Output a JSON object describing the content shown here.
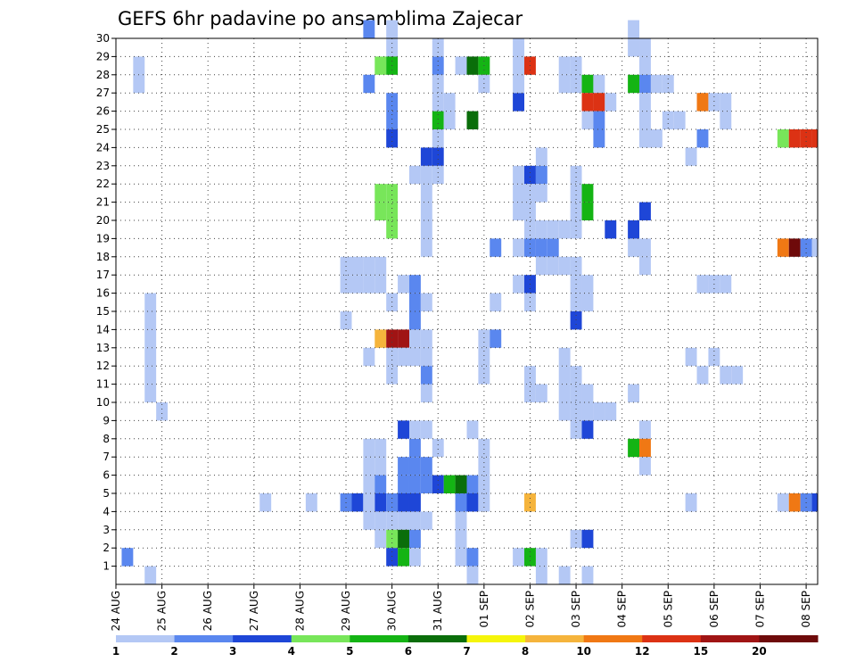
{
  "chart_data": {
    "type": "heatmap",
    "title": "GEFS 6hr padavine po ansamblima Zajecar",
    "x_tick_labels": [
      "24 AUG",
      "25 AUG",
      "26 AUG",
      "27 AUG",
      "28 AUG",
      "29 AUG",
      "30 AUG",
      "31 AUG",
      "01 SEP",
      "02 SEP",
      "03 SEP",
      "04 SEP",
      "05 SEP",
      "06 SEP",
      "07 SEP",
      "08 SEP"
    ],
    "y_tick_labels": [
      "1",
      "2",
      "3",
      "4",
      "5",
      "6",
      "7",
      "8",
      "9",
      "10",
      "11",
      "12",
      "13",
      "14",
      "15",
      "16",
      "17",
      "18",
      "19",
      "20",
      "21",
      "22",
      "23",
      "24",
      "25",
      "26",
      "27",
      "28",
      "29",
      "30"
    ],
    "x_steps": 61,
    "steps_per_day": 4,
    "y_range": [
      0,
      30
    ],
    "grid": true,
    "legend": {
      "placement": "bottom",
      "labels": [
        "1",
        "2",
        "3",
        "4",
        "5",
        "6",
        "7",
        "8",
        "10",
        "12",
        "15",
        "20"
      ],
      "colors": [
        "#b4c8f5",
        "#5a87ef",
        "#1e46d7",
        "#78e65a",
        "#14b414",
        "#0a6e0a",
        "#f5f50a",
        "#f5b43c",
        "#f07814",
        "#dc3214",
        "#a01414",
        "#6e0a0a"
      ]
    },
    "cells": [
      [
        1,
        1,
        2
      ],
      [
        2,
        27,
        1
      ],
      [
        2,
        28,
        1
      ],
      [
        3,
        15,
        1
      ],
      [
        3,
        10,
        1
      ],
      [
        3,
        0,
        1
      ],
      [
        3,
        11,
        1
      ],
      [
        3,
        12,
        1
      ],
      [
        3,
        13,
        1
      ],
      [
        3,
        14,
        1
      ],
      [
        4,
        9,
        1
      ],
      [
        13,
        4,
        1
      ],
      [
        17,
        4,
        1
      ],
      [
        24,
        15,
        1
      ],
      [
        20,
        4,
        2
      ],
      [
        21,
        4,
        3
      ],
      [
        22,
        4,
        1
      ],
      [
        20,
        17,
        1
      ],
      [
        21,
        17,
        1
      ],
      [
        22,
        17,
        1
      ],
      [
        23,
        17,
        1
      ],
      [
        20,
        16,
        1
      ],
      [
        21,
        16,
        1
      ],
      [
        22,
        16,
        1
      ],
      [
        23,
        16,
        1
      ],
      [
        20,
        14,
        1
      ],
      [
        23,
        4,
        3
      ],
      [
        24,
        4,
        2
      ],
      [
        24,
        30,
        1
      ],
      [
        24,
        29,
        1
      ],
      [
        22,
        30,
        2
      ],
      [
        23,
        28,
        4
      ],
      [
        24,
        28,
        5
      ],
      [
        22,
        27,
        2
      ],
      [
        24,
        26,
        2
      ],
      [
        24,
        25,
        2
      ],
      [
        24,
        24,
        3
      ],
      [
        23,
        21,
        4
      ],
      [
        24,
        21,
        4
      ],
      [
        23,
        20,
        4
      ],
      [
        24,
        20,
        4
      ],
      [
        24,
        19,
        4
      ],
      [
        23,
        13,
        8
      ],
      [
        24,
        13,
        11
      ],
      [
        25,
        13,
        11
      ],
      [
        24,
        12,
        1
      ],
      [
        25,
        12,
        1
      ],
      [
        22,
        12,
        1
      ],
      [
        24,
        11,
        1
      ],
      [
        22,
        3,
        1
      ],
      [
        22,
        4,
        1
      ],
      [
        22,
        5,
        1
      ],
      [
        22,
        6,
        1
      ],
      [
        22,
        7,
        1
      ],
      [
        23,
        7,
        1
      ],
      [
        23,
        6,
        1
      ],
      [
        23,
        5,
        2
      ],
      [
        23,
        3,
        1
      ],
      [
        23,
        2,
        1
      ],
      [
        24,
        3,
        1
      ],
      [
        24,
        2,
        4
      ],
      [
        24,
        1,
        3
      ],
      [
        25,
        3,
        1
      ],
      [
        25,
        2,
        6
      ],
      [
        25,
        1,
        5
      ],
      [
        26,
        3,
        1
      ],
      [
        26,
        2,
        2
      ],
      [
        27,
        3,
        1
      ],
      [
        26,
        1,
        1
      ],
      [
        25,
        4,
        3
      ],
      [
        26,
        4,
        3
      ],
      [
        25,
        5,
        2
      ],
      [
        26,
        5,
        2
      ],
      [
        27,
        5,
        2
      ],
      [
        28,
        5,
        3
      ],
      [
        25,
        6,
        2
      ],
      [
        26,
        6,
        2
      ],
      [
        27,
        6,
        2
      ],
      [
        26,
        7,
        2
      ],
      [
        25,
        8,
        3
      ],
      [
        26,
        8,
        1
      ],
      [
        27,
        8,
        1
      ],
      [
        28,
        7,
        1
      ],
      [
        26,
        13,
        1
      ],
      [
        27,
        13,
        1
      ],
      [
        26,
        12,
        1
      ],
      [
        27,
        12,
        1
      ],
      [
        25,
        16,
        1
      ],
      [
        26,
        16,
        2
      ],
      [
        26,
        15,
        2
      ],
      [
        27,
        15,
        1
      ],
      [
        26,
        14,
        2
      ],
      [
        27,
        18,
        1
      ],
      [
        27,
        19,
        1
      ],
      [
        27,
        20,
        1
      ],
      [
        27,
        21,
        1
      ],
      [
        27,
        22,
        1
      ],
      [
        26,
        22,
        1
      ],
      [
        28,
        22,
        1
      ],
      [
        27,
        23,
        3
      ],
      [
        28,
        23,
        3
      ],
      [
        28,
        24,
        1
      ],
      [
        28,
        25,
        5
      ],
      [
        29,
        25,
        1
      ],
      [
        28,
        26,
        1
      ],
      [
        29,
        26,
        1
      ],
      [
        28,
        27,
        1
      ],
      [
        28,
        28,
        2
      ],
      [
        28,
        29,
        1
      ],
      [
        27,
        10,
        1
      ],
      [
        27,
        11,
        2
      ],
      [
        29,
        5,
        5
      ],
      [
        30,
        5,
        6
      ],
      [
        30,
        3,
        1
      ],
      [
        30,
        2,
        1
      ],
      [
        30,
        1,
        1
      ],
      [
        31,
        1,
        2
      ],
      [
        31,
        0,
        1
      ],
      [
        31,
        4,
        3
      ],
      [
        30,
        4,
        2
      ],
      [
        31,
        5,
        2
      ],
      [
        31,
        8,
        1
      ],
      [
        32,
        12,
        1
      ],
      [
        32,
        11,
        1
      ],
      [
        32,
        7,
        1
      ],
      [
        32,
        6,
        1
      ],
      [
        32,
        5,
        1
      ],
      [
        32,
        4,
        1
      ],
      [
        32,
        13,
        1
      ],
      [
        33,
        13,
        2
      ],
      [
        31,
        25,
        6
      ],
      [
        33,
        15,
        1
      ],
      [
        33,
        18,
        2
      ],
      [
        32,
        27,
        1
      ],
      [
        30,
        28,
        1
      ],
      [
        31,
        28,
        6
      ],
      [
        32,
        28,
        5
      ],
      [
        36,
        28,
        10
      ],
      [
        35,
        26,
        3
      ],
      [
        35,
        16,
        1
      ],
      [
        36,
        16,
        3
      ],
      [
        36,
        15,
        1
      ],
      [
        35,
        27,
        1
      ],
      [
        35,
        28,
        1
      ],
      [
        35,
        29,
        1
      ],
      [
        35,
        21,
        1
      ],
      [
        35,
        20,
        1
      ],
      [
        36,
        21,
        1
      ],
      [
        36,
        20,
        1
      ],
      [
        36,
        19,
        1
      ],
      [
        36,
        18,
        2
      ],
      [
        37,
        18,
        2
      ],
      [
        38,
        18,
        2
      ],
      [
        37,
        19,
        1
      ],
      [
        38,
        19,
        1
      ],
      [
        39,
        19,
        1
      ],
      [
        37,
        17,
        1
      ],
      [
        38,
        17,
        1
      ],
      [
        39,
        17,
        1
      ],
      [
        40,
        17,
        1
      ],
      [
        40,
        19,
        1
      ],
      [
        35,
        18,
        1
      ],
      [
        35,
        22,
        1
      ],
      [
        36,
        22,
        3
      ],
      [
        36,
        21,
        1
      ],
      [
        37,
        22,
        2
      ],
      [
        37,
        21,
        1
      ],
      [
        37,
        23,
        1
      ],
      [
        39,
        12,
        1
      ],
      [
        37,
        1,
        1
      ],
      [
        36,
        1,
        5
      ],
      [
        35,
        1,
        1
      ],
      [
        37,
        0,
        1
      ],
      [
        40,
        15,
        1
      ],
      [
        40,
        16,
        1
      ],
      [
        41,
        15,
        1
      ],
      [
        41,
        16,
        1
      ],
      [
        40,
        20,
        1
      ],
      [
        40,
        21,
        1
      ],
      [
        40,
        22,
        1
      ],
      [
        41,
        20,
        5
      ],
      [
        41,
        21,
        5
      ],
      [
        40,
        14,
        3
      ],
      [
        36,
        4,
        8
      ],
      [
        36,
        11,
        1
      ],
      [
        36,
        10,
        1
      ],
      [
        37,
        10,
        1
      ],
      [
        39,
        27,
        1
      ],
      [
        39,
        28,
        1
      ],
      [
        40,
        27,
        1
      ],
      [
        40,
        28,
        1
      ],
      [
        41,
        27,
        5
      ],
      [
        42,
        27,
        1
      ],
      [
        41,
        26,
        10
      ],
      [
        42,
        26,
        10
      ],
      [
        41,
        25,
        1
      ],
      [
        42,
        25,
        2
      ],
      [
        42,
        24,
        2
      ],
      [
        43,
        26,
        1
      ],
      [
        40,
        8,
        1
      ],
      [
        41,
        8,
        3
      ],
      [
        40,
        2,
        1
      ],
      [
        41,
        2,
        3
      ],
      [
        43,
        19,
        3
      ],
      [
        42,
        9,
        1
      ],
      [
        43,
        9,
        1
      ],
      [
        46,
        8,
        1
      ],
      [
        39,
        0,
        1
      ],
      [
        41,
        0,
        1
      ],
      [
        40,
        11,
        1
      ],
      [
        39,
        11,
        1
      ],
      [
        39,
        10,
        1
      ],
      [
        40,
        10,
        1
      ],
      [
        41,
        10,
        1
      ],
      [
        41,
        9,
        1
      ],
      [
        40,
        9,
        1
      ],
      [
        39,
        9,
        1
      ],
      [
        42,
        9,
        1
      ],
      [
        46,
        28,
        1
      ],
      [
        46,
        27,
        2
      ],
      [
        45,
        27,
        5
      ],
      [
        47,
        27,
        1
      ],
      [
        48,
        27,
        1
      ],
      [
        46,
        26,
        1
      ],
      [
        46,
        25,
        1
      ],
      [
        46,
        24,
        1
      ],
      [
        45,
        30,
        1
      ],
      [
        45,
        29,
        1
      ],
      [
        46,
        29,
        1
      ],
      [
        46,
        18,
        1
      ],
      [
        46,
        17,
        1
      ],
      [
        45,
        7,
        5
      ],
      [
        46,
        7,
        9
      ],
      [
        46,
        6,
        1
      ],
      [
        45,
        18,
        1
      ],
      [
        46,
        20,
        3
      ],
      [
        45,
        19,
        3
      ],
      [
        45,
        10,
        1
      ],
      [
        51,
        26,
        9
      ],
      [
        51,
        24,
        2
      ],
      [
        51,
        16,
        1
      ],
      [
        52,
        16,
        1
      ],
      [
        53,
        16,
        1
      ],
      [
        53,
        25,
        1
      ],
      [
        50,
        4,
        1
      ],
      [
        50,
        23,
        1
      ],
      [
        47,
        24,
        1
      ],
      [
        46,
        24,
        1
      ],
      [
        49,
        25,
        1
      ],
      [
        48,
        25,
        1
      ],
      [
        53,
        26,
        1
      ],
      [
        52,
        26,
        1
      ],
      [
        50,
        12,
        1
      ],
      [
        52,
        12,
        1
      ],
      [
        51,
        11,
        1
      ],
      [
        54,
        11,
        1
      ],
      [
        53,
        11,
        1
      ],
      [
        58,
        4,
        1
      ],
      [
        59,
        4,
        9
      ],
      [
        60,
        4,
        2
      ],
      [
        61,
        4,
        3
      ],
      [
        58,
        24,
        4
      ],
      [
        59,
        24,
        10
      ],
      [
        60,
        24,
        10
      ],
      [
        61,
        24,
        10
      ],
      [
        62,
        24,
        8
      ],
      [
        63,
        24,
        9
      ],
      [
        64,
        24,
        1
      ],
      [
        58,
        18,
        9
      ],
      [
        59,
        18,
        12
      ],
      [
        60,
        18,
        2
      ],
      [
        61,
        18,
        1
      ],
      [
        62,
        17,
        1
      ],
      [
        63,
        17,
        1
      ],
      [
        64,
        17,
        1
      ],
      [
        63,
        16,
        1
      ],
      [
        64,
        16,
        1
      ],
      [
        62,
        16,
        1
      ],
      [
        62,
        15,
        1
      ],
      [
        62,
        22,
        1
      ],
      [
        62,
        27,
        1
      ],
      [
        62,
        28,
        1
      ],
      [
        62,
        29,
        1
      ],
      [
        65,
        20,
        1
      ],
      [
        66,
        20,
        5
      ],
      [
        67,
        28,
        5
      ],
      [
        68,
        28,
        2
      ],
      [
        67,
        25,
        2
      ],
      [
        68,
        25,
        3
      ],
      [
        69,
        25,
        3
      ],
      [
        68,
        24,
        2
      ],
      [
        68,
        22,
        2
      ],
      [
        69,
        23,
        1
      ],
      [
        69,
        20,
        3
      ],
      [
        70,
        20,
        3
      ],
      [
        69,
        12,
        3
      ],
      [
        70,
        12,
        10
      ],
      [
        70,
        23,
        1
      ],
      [
        68,
        12,
        1
      ],
      [
        69,
        13,
        1
      ],
      [
        67,
        12,
        1
      ],
      [
        66,
        12,
        1
      ],
      [
        67,
        11,
        1
      ]
    ]
  }
}
